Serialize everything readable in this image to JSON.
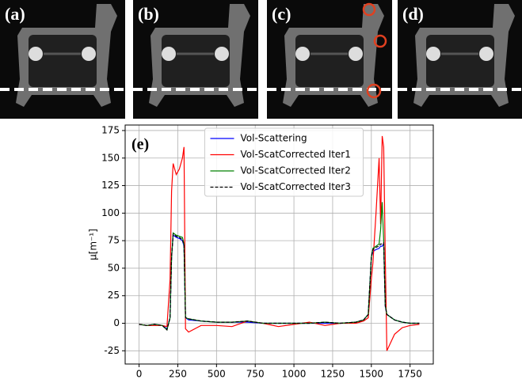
{
  "panel_labels": [
    "(a)",
    "(b)",
    "(c)",
    "(d)"
  ],
  "chart_data": {
    "type": "line",
    "annotation": "(e)",
    "y_label": "μ[m⁻¹]",
    "x": [
      0,
      50,
      100,
      150,
      180,
      200,
      210,
      220,
      240,
      260,
      280,
      290,
      300,
      320,
      400,
      500,
      600,
      700,
      800,
      900,
      1000,
      1100,
      1200,
      1300,
      1400,
      1450,
      1480,
      1500,
      1510,
      1530,
      1550,
      1560,
      1570,
      1580,
      1590,
      1600,
      1650,
      1700,
      1750,
      1810
    ],
    "series": [
      {
        "name": "Vol-Scattering",
        "color": "#0000ff",
        "linestyle": "solid",
        "values": [
          -1,
          -2,
          -1,
          -2,
          -5,
          5,
          60,
          80,
          78,
          77,
          75,
          70,
          5,
          3,
          2,
          1,
          1,
          1,
          0,
          0,
          0,
          0,
          0,
          0,
          1,
          3,
          8,
          60,
          65,
          67,
          68,
          70,
          70,
          72,
          15,
          8,
          3,
          1,
          0,
          0
        ]
      },
      {
        "name": "Vol-ScatCorrected Iter1",
        "color": "#ff0000",
        "linestyle": "solid",
        "values": [
          -1,
          -2,
          -2,
          -2,
          -3,
          40,
          120,
          145,
          135,
          140,
          150,
          160,
          -5,
          -8,
          -2,
          -2,
          -3,
          2,
          0,
          -3,
          -1,
          1,
          -2,
          0,
          0,
          2,
          5,
          40,
          55,
          100,
          150,
          90,
          170,
          160,
          60,
          -25,
          -10,
          -4,
          -2,
          -1
        ]
      },
      {
        "name": "Vol-ScatCorrected Iter2",
        "color": "#008000",
        "linestyle": "solid",
        "values": [
          -1,
          -2,
          -1,
          -2,
          -6,
          5,
          60,
          82,
          80,
          79,
          78,
          72,
          5,
          4,
          2,
          1,
          1,
          2,
          0,
          0,
          0,
          0,
          1,
          0,
          1,
          3,
          8,
          60,
          68,
          70,
          72,
          85,
          110,
          75,
          16,
          8,
          3,
          1,
          0,
          0
        ]
      },
      {
        "name": "Vol-ScatCorrected Iter3",
        "color": "#000000",
        "linestyle": "dashed",
        "values": [
          -1,
          -2,
          -1,
          -2,
          -6,
          5,
          60,
          81,
          79,
          78,
          76,
          71,
          5,
          4,
          2,
          1,
          1,
          2,
          0,
          0,
          0,
          0,
          1,
          0,
          1,
          3,
          8,
          60,
          67,
          69,
          70,
          72,
          72,
          73,
          16,
          8,
          3,
          1,
          0,
          0
        ]
      }
    ],
    "xlim": [
      -90,
      1900
    ],
    "ylim": [
      -37,
      180
    ],
    "xticks": [
      0,
      250,
      500,
      750,
      1000,
      1250,
      1500,
      1750
    ],
    "yticks": [
      -25,
      0,
      25,
      50,
      75,
      100,
      125,
      150,
      175
    ],
    "grid": true,
    "legend": "upper center"
  }
}
